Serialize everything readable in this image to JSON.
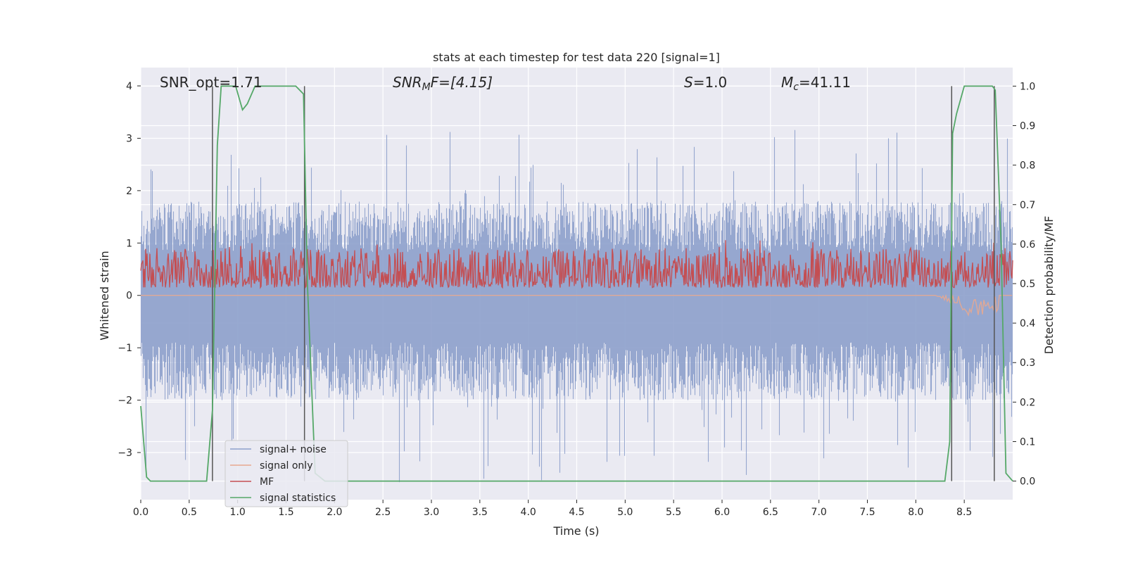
{
  "chart_data": {
    "type": "line",
    "title": "stats at each timestep for test data 220 [signal=1]",
    "xlabel": "Time (s)",
    "ylabel": "Whitened strain",
    "y2label": "Detection probability/MF",
    "xlim": [
      0.0,
      9.0
    ],
    "ylim": [
      -3.9,
      4.35
    ],
    "y2lim": [
      -0.047,
      1.047
    ],
    "grid": true,
    "legend_position": "lower-left",
    "xticks": [
      "0.0",
      "0.5",
      "1.0",
      "1.5",
      "2.0",
      "2.5",
      "3.0",
      "3.5",
      "4.0",
      "4.5",
      "5.0",
      "5.5",
      "6.0",
      "6.5",
      "7.0",
      "7.5",
      "8.0",
      "8.5"
    ],
    "yticks": [
      "−3",
      "−2",
      "−1",
      "0",
      "1",
      "2",
      "3",
      "4"
    ],
    "y2ticks": [
      "0.0",
      "0.1",
      "0.2",
      "0.3",
      "0.4",
      "0.5",
      "0.6",
      "0.7",
      "0.8",
      "0.9",
      "1.0"
    ],
    "annotations": {
      "snr_opt": "SNR_opt=1.71",
      "snr_mf_base": "SNR",
      "snr_mf_sub": "M",
      "snr_mf_rest": "F=[4.15]",
      "s_var": "S",
      "s_val": "=1.0",
      "mc_var": "M",
      "mc_sub": "c",
      "mc_val": "=41.11"
    },
    "series": [
      {
        "name": "signal+ noise",
        "color": "#8da0cb",
        "axis": "left",
        "envelope": {
          "typical_max": 1.8,
          "typical_min": -2.0,
          "peak_max": 3.2,
          "peak_min": -3.6
        }
      },
      {
        "name": "signal only",
        "color": "#e8a88f",
        "axis": "left",
        "baseline": 0.0,
        "chirp_min": -0.4,
        "chirp_time": 8.5
      },
      {
        "name": "MF",
        "color": "#c44e52",
        "axis": "right",
        "typical_range": [
          0.49,
          0.59
        ],
        "peak": 0.61
      },
      {
        "name": "signal statistics",
        "color": "#55a868",
        "axis": "right",
        "x": [
          0.0,
          0.06,
          0.1,
          0.68,
          0.74,
          0.79,
          0.83,
          0.88,
          0.98,
          1.05,
          1.1,
          1.18,
          1.3,
          1.45,
          1.6,
          1.68,
          1.72,
          1.8,
          1.9,
          8.3,
          8.35,
          8.38,
          8.42,
          8.5,
          8.7,
          8.79,
          8.82,
          8.88,
          8.93,
          9.0
        ],
        "y": [
          0.19,
          0.01,
          0.0,
          0.0,
          0.18,
          0.85,
          1.0,
          1.0,
          1.0,
          0.94,
          0.955,
          1.0,
          1.0,
          1.0,
          1.0,
          0.98,
          0.5,
          0.02,
          0.0,
          0.0,
          0.1,
          0.88,
          0.93,
          1.0,
          1.0,
          1.0,
          0.99,
          0.6,
          0.02,
          0.0
        ]
      }
    ],
    "vertical_markers": [
      0.74,
      1.69,
      8.37,
      8.81
    ]
  }
}
